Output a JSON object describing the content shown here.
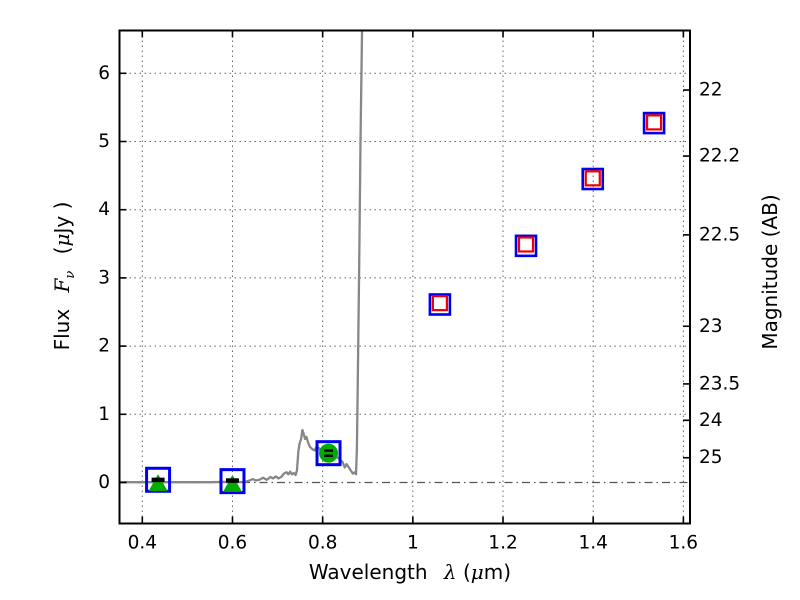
{
  "labels": {
    "xlabel_word": "Wavelength",
    "xlabel_symbol": "λ",
    "xlabel_unit_open": "(",
    "xlabel_unit_mu": "μ",
    "xlabel_unit_rest": "m)",
    "ylabel_flux_word": "Flux",
    "ylabel_flux_symbol": "F",
    "ylabel_flux_sub": "ν",
    "ylabel_flux_open": "(",
    "ylabel_flux_mu": "μ",
    "ylabel_flux_rest": "Jy )",
    "right_ylabel": "Magnitude (AB)"
  },
  "chart_data": {
    "type": "scatter",
    "title": "",
    "xlabel": "Wavelength λ (μm)",
    "ylabel_left": "Flux Fν ( μJy )",
    "ylabel_right": "Magnitude (AB)",
    "xlim": [
      0.349,
      1.615
    ],
    "ylim_flux": [
      -0.6,
      6.63
    ],
    "grid": "dotted black, at all major ticks",
    "zero_line": "horizontal dash-dot line at flux = 0",
    "mag_flux_relation": "AB mag m = 23.9 - 2.5*log10(F_uJy); right axis ticks placed on left flux scale",
    "xticks": {
      "values": [
        0.4,
        0.6,
        0.8,
        1.0,
        1.2,
        1.4,
        1.6
      ],
      "labels": [
        "0.4",
        "0.6",
        "0.8",
        "1",
        "1.2",
        "1.4",
        "1.6"
      ]
    },
    "yticks_left": {
      "values": [
        0,
        1,
        2,
        3,
        4,
        5,
        6
      ],
      "labels": [
        "0",
        "1",
        "2",
        "3",
        "4",
        "5",
        "6"
      ]
    },
    "yticks_right": {
      "values": [
        22,
        22.2,
        22.5,
        23,
        23.5,
        24,
        25
      ],
      "labels": [
        "22",
        "22.2",
        "22.5",
        "23",
        "23.5",
        "24",
        "25"
      ]
    },
    "colors": {
      "spectrum": "#878787",
      "blue_square": "#0000f0",
      "red_square": "#ee0000",
      "green_marker": "#00aa00",
      "error_bar": "#000000",
      "zero_line": "#555555",
      "grid": "#666666"
    },
    "series": [
      {
        "name": "model_spectrum",
        "type": "line",
        "color": "#878787",
        "note": "flat near 0 flux blueward, small bumps 0.63-0.74 um, peak 0.77 uJy at 0.755 um, declines with wiggles to 0.12 at 0.874 um, then sharp emission spike off the top of the axes near 0.88 um",
        "points": [
          [
            0.35,
            0.005
          ],
          [
            0.45,
            0.005
          ],
          [
            0.55,
            0.005
          ],
          [
            0.6,
            0.01
          ],
          [
            0.625,
            0.005
          ],
          [
            0.638,
            0.03
          ],
          [
            0.645,
            0.05
          ],
          [
            0.652,
            0.03
          ],
          [
            0.66,
            0.04
          ],
          [
            0.668,
            0.07
          ],
          [
            0.676,
            0.04
          ],
          [
            0.684,
            0.08
          ],
          [
            0.69,
            0.06
          ],
          [
            0.696,
            0.09
          ],
          [
            0.702,
            0.06
          ],
          [
            0.708,
            0.08
          ],
          [
            0.714,
            0.13
          ],
          [
            0.72,
            0.15
          ],
          [
            0.724,
            0.12
          ],
          [
            0.728,
            0.16
          ],
          [
            0.732,
            0.12
          ],
          [
            0.736,
            0.14
          ],
          [
            0.74,
            0.11
          ],
          [
            0.743,
            0.18
          ],
          [
            0.746,
            0.45
          ],
          [
            0.749,
            0.58
          ],
          [
            0.752,
            0.63
          ],
          [
            0.755,
            0.77
          ],
          [
            0.758,
            0.71
          ],
          [
            0.761,
            0.64
          ],
          [
            0.764,
            0.67
          ],
          [
            0.768,
            0.58
          ],
          [
            0.772,
            0.52
          ],
          [
            0.777,
            0.49
          ],
          [
            0.782,
            0.47
          ],
          [
            0.787,
            0.53
          ],
          [
            0.792,
            0.5
          ],
          [
            0.797,
            0.46
          ],
          [
            0.802,
            0.44
          ],
          [
            0.808,
            0.45
          ],
          [
            0.814,
            0.42
          ],
          [
            0.82,
            0.41
          ],
          [
            0.826,
            0.43
          ],
          [
            0.832,
            0.37
          ],
          [
            0.838,
            0.34
          ],
          [
            0.844,
            0.3
          ],
          [
            0.849,
            0.22
          ],
          [
            0.853,
            0.27
          ],
          [
            0.857,
            0.23
          ],
          [
            0.862,
            0.18
          ],
          [
            0.867,
            0.13
          ],
          [
            0.871,
            0.15
          ],
          [
            0.874,
            0.12
          ],
          [
            0.876,
            0.5
          ],
          [
            0.878,
            1.5
          ],
          [
            0.881,
            3.2
          ],
          [
            0.884,
            5.0
          ],
          [
            0.888,
            6.9
          ]
        ]
      },
      {
        "name": "observed_photometry_blue_open_squares",
        "type": "scatter",
        "marker": "open-square",
        "color": "#0000f0",
        "points": [
          {
            "lambda": 0.435,
            "flux": 0.04
          },
          {
            "lambda": 0.6,
            "flux": 0.02
          },
          {
            "lambda": 0.813,
            "flux": 0.43
          },
          {
            "lambda": 1.06,
            "flux": 2.61
          },
          {
            "lambda": 1.251,
            "flux": 3.47
          },
          {
            "lambda": 1.399,
            "flux": 4.45
          },
          {
            "lambda": 1.535,
            "flux": 5.27
          }
        ]
      },
      {
        "name": "model_photometry_red_open_squares",
        "type": "scatter",
        "marker": "open-square",
        "color": "#ee0000",
        "points": [
          {
            "lambda": 1.06,
            "flux": 2.63
          },
          {
            "lambda": 1.251,
            "flux": 3.49
          },
          {
            "lambda": 1.399,
            "flux": 4.46
          },
          {
            "lambda": 1.535,
            "flux": 5.28
          }
        ]
      },
      {
        "name": "green_markers_with_black_error_bars",
        "type": "scatter",
        "color": "#00aa00",
        "points": [
          {
            "lambda": 0.435,
            "flux": 0.02,
            "marker": "triangle-up"
          },
          {
            "lambda": 0.6,
            "flux": 0.01,
            "marker": "triangle-up"
          },
          {
            "lambda": 0.813,
            "flux": 0.43,
            "marker": "circle"
          }
        ]
      }
    ]
  }
}
